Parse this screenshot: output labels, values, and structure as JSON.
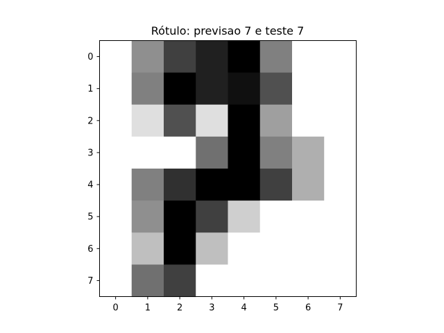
{
  "chart_data": {
    "type": "heatmap",
    "title": "Rótulo: previsao 7 e teste 7",
    "xlabel": "",
    "ylabel": "",
    "colormap": "gray_r",
    "value_range": [
      0,
      16
    ],
    "x_ticks": [
      "0",
      "1",
      "2",
      "3",
      "4",
      "5",
      "6",
      "7"
    ],
    "y_ticks": [
      "0",
      "1",
      "2",
      "3",
      "4",
      "5",
      "6",
      "7"
    ],
    "grid": false,
    "rows": [
      [
        0,
        7,
        12,
        14,
        16,
        8,
        0,
        0
      ],
      [
        0,
        8,
        16,
        14,
        15,
        11,
        0,
        0
      ],
      [
        0,
        2,
        11,
        2,
        16,
        6,
        0,
        0
      ],
      [
        0,
        0,
        0,
        9,
        16,
        8,
        5,
        0
      ],
      [
        0,
        8,
        13,
        16,
        16,
        12,
        5,
        0
      ],
      [
        0,
        7,
        16,
        12,
        3,
        0,
        0,
        0
      ],
      [
        0,
        4,
        16,
        4,
        0,
        0,
        0,
        0
      ],
      [
        0,
        9,
        12,
        0,
        0,
        0,
        0,
        0
      ]
    ]
  }
}
